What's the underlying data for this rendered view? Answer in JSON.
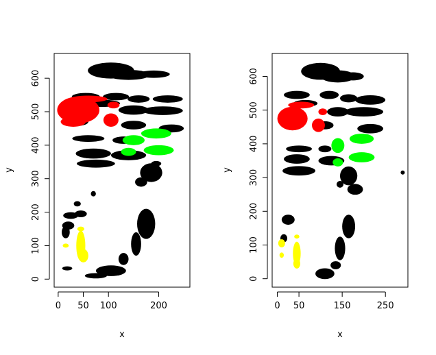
{
  "chart_data": [
    {
      "type": "scatter",
      "xlabel": "x",
      "ylabel": "y",
      "xlim": [
        -8,
        262
      ],
      "ylim": [
        -24,
        674
      ],
      "x_ticks": [
        0,
        50,
        100,
        200
      ],
      "x_tick_labels": [
        "0",
        "50",
        "100",
        "200"
      ],
      "y_ticks": [
        0,
        100,
        200,
        300,
        400,
        500,
        600
      ],
      "y_tick_labels": [
        "0",
        "100",
        "200",
        "300",
        "400",
        "500",
        "600"
      ],
      "grid": false,
      "legend": "none",
      "series": [
        {
          "color": "#000000",
          "blobs": [
            {
              "x": 105,
              "y": 623,
              "rx": 46,
              "ry": 24
            },
            {
              "x": 140,
              "y": 610,
              "rx": 42,
              "ry": 15
            },
            {
              "x": 190,
              "y": 612,
              "rx": 32,
              "ry": 11
            },
            {
              "x": 55,
              "y": 545,
              "rx": 28,
              "ry": 11
            },
            {
              "x": 115,
              "y": 545,
              "rx": 26,
              "ry": 11
            },
            {
              "x": 160,
              "y": 538,
              "rx": 22,
              "ry": 11
            },
            {
              "x": 218,
              "y": 538,
              "rx": 30,
              "ry": 11
            },
            {
              "x": 85,
              "y": 525,
              "rx": 38,
              "ry": 11
            },
            {
              "x": 150,
              "y": 505,
              "rx": 30,
              "ry": 14
            },
            {
              "x": 208,
              "y": 503,
              "rx": 40,
              "ry": 13
            },
            {
              "x": 40,
              "y": 470,
              "rx": 20,
              "ry": 12
            },
            {
              "x": 150,
              "y": 460,
              "rx": 25,
              "ry": 13
            },
            {
              "x": 225,
              "y": 450,
              "rx": 25,
              "ry": 12
            },
            {
              "x": 60,
              "y": 420,
              "rx": 32,
              "ry": 10
            },
            {
              "x": 130,
              "y": 415,
              "rx": 22,
              "ry": 11
            },
            {
              "x": 70,
              "y": 375,
              "rx": 35,
              "ry": 15
            },
            {
              "x": 140,
              "y": 370,
              "rx": 35,
              "ry": 15
            },
            {
              "x": 195,
              "y": 345,
              "rx": 10,
              "ry": 8
            },
            {
              "x": 75,
              "y": 345,
              "rx": 38,
              "ry": 12
            },
            {
              "x": 185,
              "y": 318,
              "rx": 22,
              "ry": 28
            },
            {
              "x": 165,
              "y": 290,
              "rx": 12,
              "ry": 14
            },
            {
              "x": 70,
              "y": 255,
              "rx": 5,
              "ry": 8
            },
            {
              "x": 38,
              "y": 225,
              "rx": 7,
              "ry": 8
            },
            {
              "x": 25,
              "y": 190,
              "rx": 15,
              "ry": 10
            },
            {
              "x": 45,
              "y": 195,
              "rx": 12,
              "ry": 10
            },
            {
              "x": 15,
              "y": 140,
              "rx": 8,
              "ry": 18
            },
            {
              "x": 20,
              "y": 160,
              "rx": 12,
              "ry": 12
            },
            {
              "x": 175,
              "y": 165,
              "rx": 18,
              "ry": 45
            },
            {
              "x": 155,
              "y": 105,
              "rx": 10,
              "ry": 35
            },
            {
              "x": 130,
              "y": 60,
              "rx": 10,
              "ry": 18
            },
            {
              "x": 105,
              "y": 25,
              "rx": 30,
              "ry": 16
            },
            {
              "x": 75,
              "y": 10,
              "rx": 22,
              "ry": 8
            },
            {
              "x": 18,
              "y": 32,
              "rx": 10,
              "ry": 5
            }
          ]
        },
        {
          "color": "#ff0000",
          "blobs": [
            {
              "x": 40,
              "y": 505,
              "rx": 42,
              "ry": 40
            },
            {
              "x": 60,
              "y": 538,
              "rx": 38,
              "ry": 10
            },
            {
              "x": 110,
              "y": 520,
              "rx": 12,
              "ry": 10
            },
            {
              "x": 105,
              "y": 475,
              "rx": 15,
              "ry": 20
            },
            {
              "x": 30,
              "y": 470,
              "rx": 25,
              "ry": 15
            }
          ]
        },
        {
          "color": "#00ff00",
          "blobs": [
            {
              "x": 150,
              "y": 415,
              "rx": 22,
              "ry": 15
            },
            {
              "x": 195,
              "y": 435,
              "rx": 30,
              "ry": 15
            },
            {
              "x": 200,
              "y": 385,
              "rx": 30,
              "ry": 15
            },
            {
              "x": 140,
              "y": 380,
              "rx": 15,
              "ry": 12
            }
          ]
        },
        {
          "color": "#ffff00",
          "blobs": [
            {
              "x": 45,
              "y": 100,
              "rx": 9,
              "ry": 45
            },
            {
              "x": 50,
              "y": 70,
              "rx": 10,
              "ry": 20
            },
            {
              "x": 15,
              "y": 100,
              "rx": 6,
              "ry": 6
            },
            {
              "x": 45,
              "y": 150,
              "rx": 7,
              "ry": 7
            }
          ]
        }
      ]
    },
    {
      "type": "scatter",
      "xlabel": "x",
      "ylabel": "y",
      "xlim": [
        -12,
        302
      ],
      "ylim": [
        -25,
        668
      ],
      "x_ticks": [
        0,
        50,
        150,
        250
      ],
      "x_tick_labels": [
        "0",
        "50",
        "150",
        "250"
      ],
      "y_ticks": [
        0,
        100,
        200,
        300,
        400,
        500,
        600
      ],
      "y_tick_labels": [
        "0",
        "100",
        "200",
        "300",
        "400",
        "500",
        "600"
      ],
      "grid": false,
      "legend": "none",
      "series": [
        {
          "color": "#000000",
          "blobs": [
            {
              "x": 100,
              "y": 615,
              "rx": 45,
              "ry": 25
            },
            {
              "x": 140,
              "y": 600,
              "rx": 40,
              "ry": 18
            },
            {
              "x": 175,
              "y": 600,
              "rx": 25,
              "ry": 12
            },
            {
              "x": 45,
              "y": 545,
              "rx": 30,
              "ry": 12
            },
            {
              "x": 120,
              "y": 545,
              "rx": 22,
              "ry": 12
            },
            {
              "x": 165,
              "y": 535,
              "rx": 20,
              "ry": 12
            },
            {
              "x": 215,
              "y": 530,
              "rx": 35,
              "ry": 14
            },
            {
              "x": 65,
              "y": 520,
              "rx": 28,
              "ry": 10
            },
            {
              "x": 140,
              "y": 495,
              "rx": 25,
              "ry": 14
            },
            {
              "x": 200,
              "y": 495,
              "rx": 45,
              "ry": 14
            },
            {
              "x": 110,
              "y": 455,
              "rx": 20,
              "ry": 12
            },
            {
              "x": 215,
              "y": 445,
              "rx": 30,
              "ry": 14
            },
            {
              "x": 35,
              "y": 455,
              "rx": 25,
              "ry": 12
            },
            {
              "x": 50,
              "y": 385,
              "rx": 30,
              "ry": 10
            },
            {
              "x": 110,
              "y": 385,
              "rx": 15,
              "ry": 10
            },
            {
              "x": 45,
              "y": 355,
              "rx": 30,
              "ry": 14
            },
            {
              "x": 125,
              "y": 350,
              "rx": 30,
              "ry": 14
            },
            {
              "x": 50,
              "y": 320,
              "rx": 38,
              "ry": 14
            },
            {
              "x": 165,
              "y": 305,
              "rx": 20,
              "ry": 28
            },
            {
              "x": 145,
              "y": 280,
              "rx": 8,
              "ry": 10
            },
            {
              "x": 180,
              "y": 265,
              "rx": 18,
              "ry": 16
            },
            {
              "x": 290,
              "y": 315,
              "rx": 4,
              "ry": 6
            },
            {
              "x": 25,
              "y": 175,
              "rx": 15,
              "ry": 15
            },
            {
              "x": 15,
              "y": 120,
              "rx": 8,
              "ry": 12
            },
            {
              "x": 165,
              "y": 155,
              "rx": 15,
              "ry": 35
            },
            {
              "x": 145,
              "y": 90,
              "rx": 12,
              "ry": 35
            },
            {
              "x": 110,
              "y": 15,
              "rx": 22,
              "ry": 16
            },
            {
              "x": 135,
              "y": 40,
              "rx": 12,
              "ry": 12
            }
          ]
        },
        {
          "color": "#ff0000",
          "blobs": [
            {
              "x": 35,
              "y": 475,
              "rx": 35,
              "ry": 35
            },
            {
              "x": 55,
              "y": 515,
              "rx": 30,
              "ry": 10
            },
            {
              "x": 105,
              "y": 495,
              "rx": 10,
              "ry": 10
            },
            {
              "x": 95,
              "y": 455,
              "rx": 15,
              "ry": 20
            }
          ]
        },
        {
          "color": "#00ff00",
          "blobs": [
            {
              "x": 140,
              "y": 395,
              "rx": 15,
              "ry": 22
            },
            {
              "x": 195,
              "y": 415,
              "rx": 28,
              "ry": 15
            },
            {
              "x": 195,
              "y": 360,
              "rx": 30,
              "ry": 15
            },
            {
              "x": 140,
              "y": 345,
              "rx": 12,
              "ry": 12
            }
          ]
        },
        {
          "color": "#ffff00",
          "blobs": [
            {
              "x": 45,
              "y": 75,
              "rx": 9,
              "ry": 35
            },
            {
              "x": 45,
              "y": 45,
              "rx": 8,
              "ry": 15
            },
            {
              "x": 10,
              "y": 105,
              "rx": 8,
              "ry": 12
            },
            {
              "x": 10,
              "y": 70,
              "rx": 5,
              "ry": 8
            },
            {
              "x": 45,
              "y": 125,
              "rx": 6,
              "ry": 6
            }
          ]
        }
      ]
    }
  ]
}
